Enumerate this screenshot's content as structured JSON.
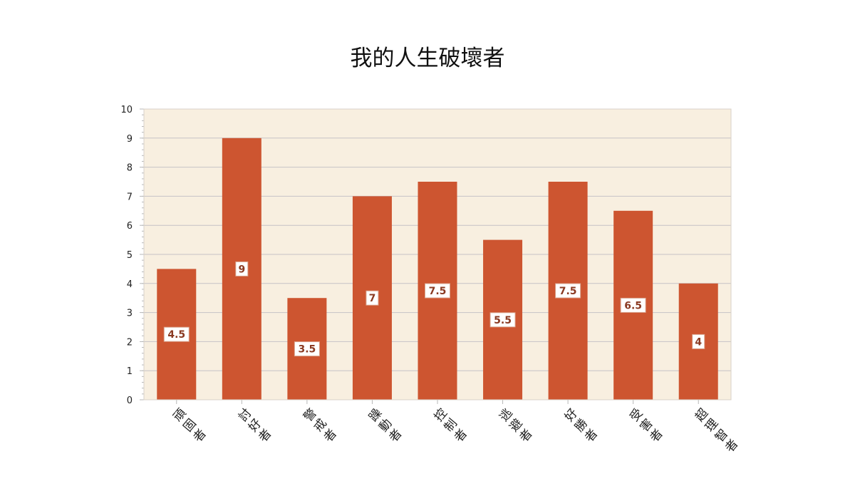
{
  "chart_data": {
    "type": "bar",
    "title": "我的人生破壞者",
    "xlabel": "",
    "ylabel": "",
    "categories": [
      "頑固者",
      "討好者",
      "警戒者",
      "躁動者",
      "控制者",
      "逃避者",
      "好勝者",
      "受害者",
      "超理智者"
    ],
    "values": [
      4.5,
      9,
      3.5,
      7,
      7.5,
      5.5,
      7.5,
      6.5,
      4
    ],
    "data_labels": [
      "4.5",
      "9",
      "3.5",
      "7",
      "7.5",
      "5.5",
      "7.5",
      "6.5",
      "4"
    ],
    "ylim": [
      0,
      10
    ],
    "yticks": [
      "0",
      "1",
      "2",
      "3",
      "4",
      "5",
      "6",
      "7",
      "8",
      "9",
      "10"
    ],
    "grid": true,
    "legend": "none",
    "colors": {
      "bar": "#cd5530",
      "plot_background": "#f8efe0",
      "gridline": "#c6c2c6",
      "axis": "#b7b7b7",
      "data_label_bg": "#ffffff",
      "data_label_text": "#8a3a22"
    }
  }
}
